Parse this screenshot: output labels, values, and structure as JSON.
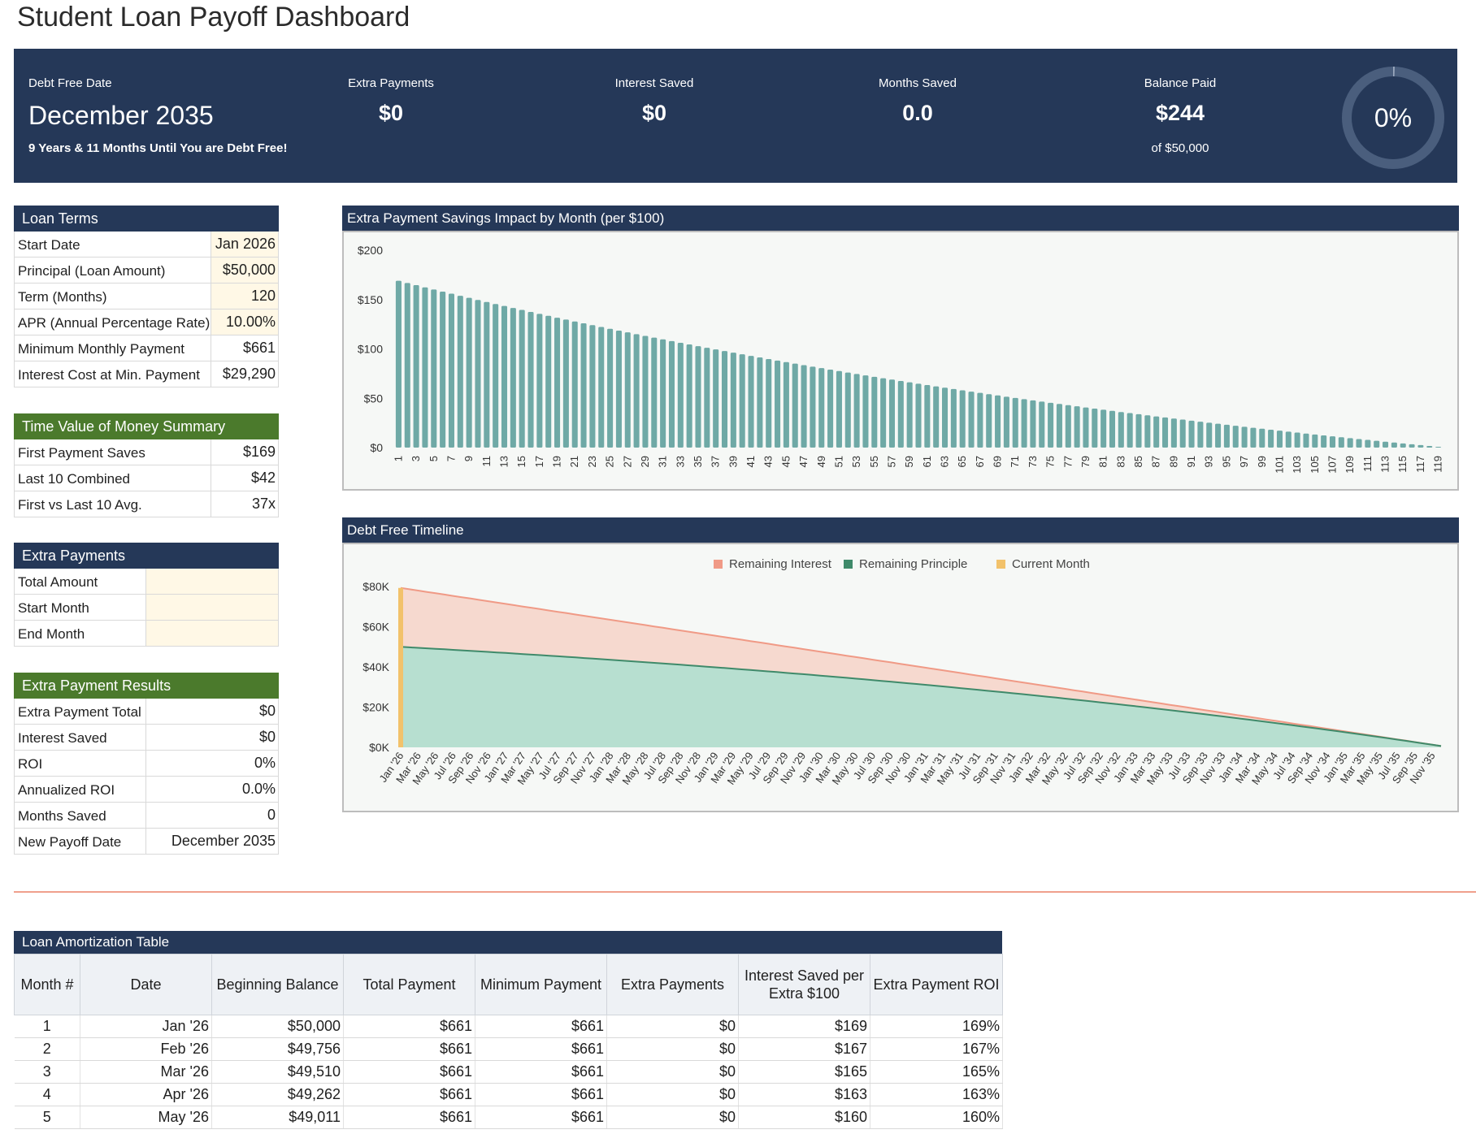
{
  "page_title": "Student Loan Payoff Dashboard",
  "kpis": {
    "debt_free": {
      "label": "Debt Free Date",
      "value": "December 2035",
      "sub": "9 Years & 11 Months Until You are Debt Free!"
    },
    "extra_payments": {
      "label": "Extra Payments",
      "value": "$0"
    },
    "interest_saved": {
      "label": "Interest Saved",
      "value": "$0"
    },
    "months_saved": {
      "label": "Months Saved",
      "value": "0.0"
    },
    "balance_paid": {
      "label": "Balance Paid",
      "value": "$244",
      "sub": "of $50,000"
    },
    "progress_percent": "0%",
    "progress_fraction": 0.005
  },
  "loan_terms": {
    "title": "Loan Terms",
    "rows": [
      {
        "label": "Start Date",
        "value": "Jan 2026"
      },
      {
        "label": "Principal (Loan Amount)",
        "value": "$50,000"
      },
      {
        "label": "Term (Months)",
        "value": "120"
      },
      {
        "label": "APR (Annual Percentage Rate)",
        "value": "10.00%"
      },
      {
        "label": "Minimum Monthly Payment",
        "value": "$661"
      },
      {
        "label": "Interest Cost at Min. Payment",
        "value": "$29,290"
      }
    ]
  },
  "tvm_summary": {
    "title": "Time Value of Money Summary",
    "rows": [
      {
        "label": "First Payment Saves",
        "value": "$169"
      },
      {
        "label": "Last 10 Combined",
        "value": "$42"
      },
      {
        "label": "First vs Last 10 Avg.",
        "value": "37x"
      }
    ]
  },
  "extra_payments": {
    "title": "Extra Payments",
    "rows": [
      {
        "label": "Total Amount",
        "value": ""
      },
      {
        "label": "Start Month",
        "value": ""
      },
      {
        "label": "End Month",
        "value": ""
      }
    ]
  },
  "extra_results": {
    "title": "Extra Payment Results",
    "rows": [
      {
        "label": "Extra Payment Total",
        "value": "$0"
      },
      {
        "label": "Interest Saved",
        "value": "$0"
      },
      {
        "label": "ROI",
        "value": "0%"
      },
      {
        "label": "Annualized ROI",
        "value": "0.0%"
      },
      {
        "label": "Months Saved",
        "value": "0"
      },
      {
        "label": "New Payoff Date",
        "value": "December 2035"
      }
    ]
  },
  "colors": {
    "navy": "#253858",
    "green_header": "#4b7a2c",
    "bar": "#6fa9a6",
    "interest": "#f09a86",
    "interest_fill": "#f6d9cf",
    "principle": "#3f8a6a",
    "principle_fill": "#b7dfd0",
    "current": "#f2c26b"
  },
  "chart_data": [
    {
      "type": "bar",
      "title": "Extra Payment Savings Impact by Month (per $100)",
      "ylim": [
        0,
        200
      ],
      "yticks": [
        "$0",
        "$50",
        "$100",
        "$150",
        "$200"
      ],
      "ytick_values": [
        0,
        50,
        100,
        150,
        200
      ],
      "months": 119,
      "start_value": 169,
      "rate_monthly": 0.008333,
      "xtick_labels": [
        "1",
        "3",
        "5",
        "7",
        "9",
        "11",
        "13",
        "15",
        "17",
        "19",
        "21",
        "23",
        "25",
        "27",
        "29",
        "31",
        "33",
        "35",
        "37",
        "39",
        "41",
        "43",
        "45",
        "47",
        "49",
        "51",
        "53",
        "55",
        "57",
        "59",
        "61",
        "63",
        "65",
        "67",
        "69",
        "71",
        "73",
        "75",
        "77",
        "79",
        "81",
        "83",
        "85",
        "87",
        "89",
        "91",
        "93",
        "95",
        "97",
        "99",
        "101",
        "103",
        "105",
        "107",
        "109",
        "111",
        "113",
        "115",
        "117",
        "119"
      ]
    },
    {
      "type": "area",
      "title": "Debt Free Timeline",
      "legend": [
        "Remaining Interest",
        "Remaining Principle",
        "Current Month"
      ],
      "ylim": [
        0,
        80000
      ],
      "yticks": [
        "$0K",
        "$20K",
        "$40K",
        "$60K",
        "$80K"
      ],
      "ytick_values": [
        0,
        20000,
        40000,
        60000,
        80000
      ],
      "principal_start": 50000,
      "interest_start": 29290,
      "months": 120,
      "current_month": 1,
      "xtick_labels": [
        "Jan '26",
        "Mar '26",
        "May '26",
        "Jul '26",
        "Sep '26",
        "Nov '26",
        "Jan '27",
        "Mar '27",
        "May '27",
        "Jul '27",
        "Sep '27",
        "Nov '27",
        "Jan '28",
        "Mar '28",
        "May '28",
        "Jul '28",
        "Sep '28",
        "Nov '28",
        "Jan '29",
        "Mar '29",
        "May '29",
        "Jul '29",
        "Sep '29",
        "Nov '29",
        "Jan '30",
        "Mar '30",
        "May '30",
        "Jul '30",
        "Sep '30",
        "Nov '30",
        "Jan '31",
        "Mar '31",
        "May '31",
        "Jul '31",
        "Sep '31",
        "Nov '31",
        "Jan '32",
        "Mar '32",
        "May '32",
        "Jul '32",
        "Sep '32",
        "Nov '32",
        "Jan '33",
        "Mar '33",
        "May '33",
        "Jul '33",
        "Sep '33",
        "Nov '33",
        "Jan '34",
        "Mar '34",
        "May '34",
        "Jul '34",
        "Sep '34",
        "Nov '34",
        "Jan '35",
        "Mar '35",
        "May '35",
        "Jul '35",
        "Sep '35",
        "Nov '35"
      ]
    }
  ],
  "amortization": {
    "title": "Loan Amortization Table",
    "columns": [
      "Month #",
      "Date",
      "Beginning Balance",
      "Total Payment",
      "Minimum Payment",
      "Extra Payments",
      "Interest Saved per Extra $100",
      "Extra Payment ROI"
    ],
    "rows": [
      [
        "1",
        "Jan '26",
        "$50,000",
        "$661",
        "$661",
        "$0",
        "$169",
        "169%"
      ],
      [
        "2",
        "Feb '26",
        "$49,756",
        "$661",
        "$661",
        "$0",
        "$167",
        "167%"
      ],
      [
        "3",
        "Mar '26",
        "$49,510",
        "$661",
        "$661",
        "$0",
        "$165",
        "165%"
      ],
      [
        "4",
        "Apr '26",
        "$49,262",
        "$661",
        "$661",
        "$0",
        "$163",
        "163%"
      ],
      [
        "5",
        "May '26",
        "$49,011",
        "$661",
        "$661",
        "$0",
        "$160",
        "160%"
      ]
    ]
  }
}
